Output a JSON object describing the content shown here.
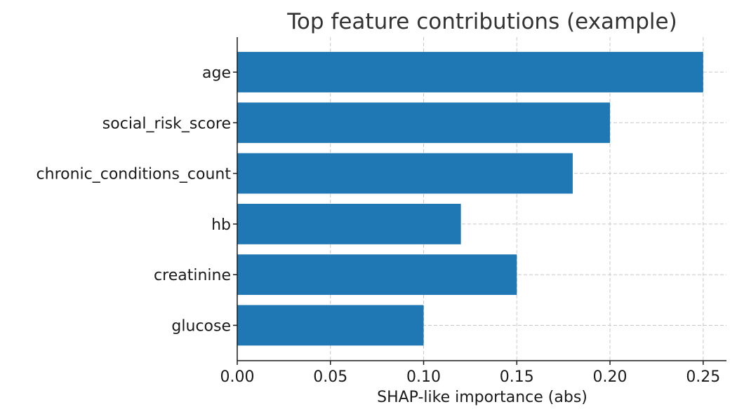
{
  "chart_data": {
    "type": "bar",
    "orientation": "horizontal",
    "title": "Top feature contributions (example)",
    "xlabel": "SHAP-like importance (abs)",
    "ylabel": "",
    "categories": [
      "age",
      "social_risk_score",
      "chronic_conditions_count",
      "hb",
      "creatinine",
      "glucose"
    ],
    "values": [
      0.25,
      0.2,
      0.18,
      0.12,
      0.15,
      0.1
    ],
    "xlim": [
      0,
      0.2625
    ],
    "xticks": [
      0.0,
      0.05,
      0.1,
      0.15,
      0.2,
      0.25
    ],
    "xtick_labels": [
      "0.00",
      "0.05",
      "0.10",
      "0.15",
      "0.20",
      "0.25"
    ],
    "grid": true,
    "bar_color": "#1f77b4"
  }
}
